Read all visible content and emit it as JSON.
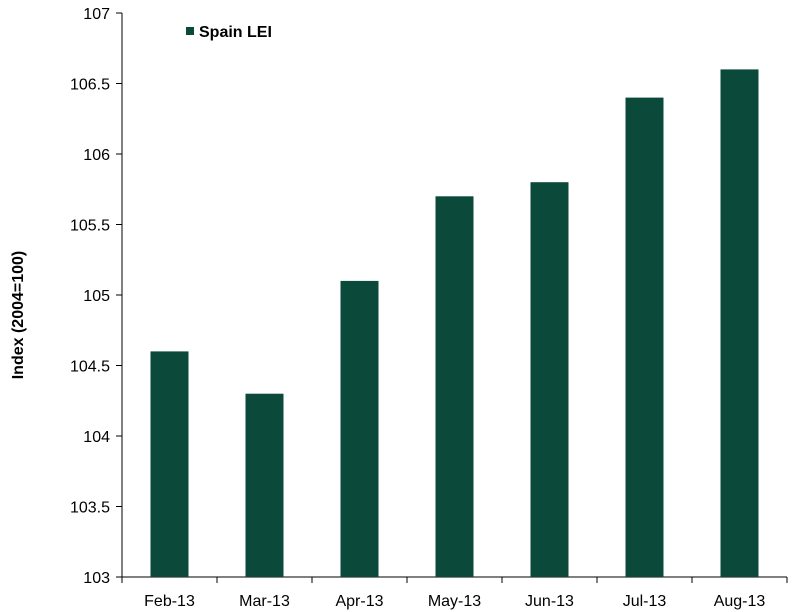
{
  "chart_data": {
    "type": "bar",
    "categories": [
      "Feb-13",
      "Mar-13",
      "Apr-13",
      "May-13",
      "Jun-13",
      "Jul-13",
      "Aug-13"
    ],
    "series": [
      {
        "name": "Spain LEI",
        "values": [
          104.6,
          104.3,
          105.1,
          105.7,
          105.8,
          106.4,
          106.6
        ],
        "color": "#0b4a3b"
      }
    ],
    "title": "",
    "xlabel": "",
    "ylabel": "Index (2004=100)",
    "ylim": [
      103,
      107
    ],
    "yticks": [
      103,
      103.5,
      104,
      104.5,
      105,
      105.5,
      106,
      106.5,
      107
    ],
    "ytick_labels": [
      "103",
      "103.5",
      "104",
      "104.5",
      "105",
      "105.5",
      "106",
      "106.5",
      "107"
    ],
    "grid": false,
    "legend_position": "top-left"
  }
}
